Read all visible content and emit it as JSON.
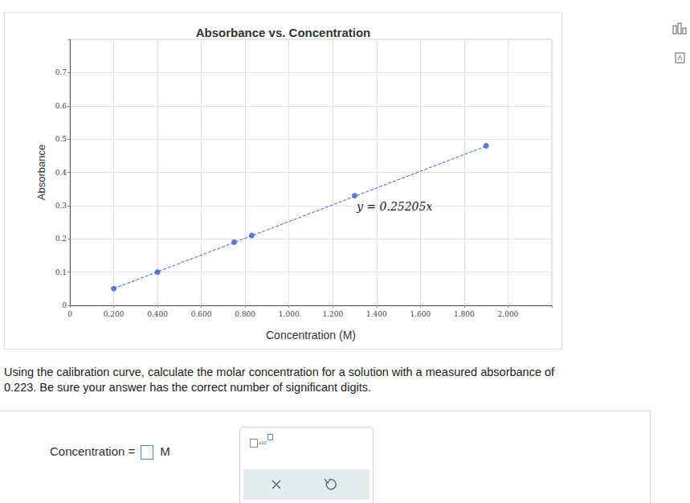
{
  "chart_data": {
    "type": "scatter",
    "title": "Absorbance vs. Concentration",
    "x_label": "Concentration (M)",
    "y_label": "Absorbance",
    "x": [
      0.2,
      0.4,
      0.75,
      0.83,
      1.3,
      1.9
    ],
    "values": [
      0.05,
      0.1,
      0.19,
      0.21,
      0.33,
      0.48
    ],
    "color": "#3a5fcd",
    "marker": "circle",
    "xlim": [
      0,
      2.2
    ],
    "ylim": [
      0,
      0.8
    ],
    "xticks": [
      0,
      {
        "value": 0.2,
        "label": "0.200"
      },
      {
        "value": 0.4,
        "label": "0.400"
      },
      {
        "value": 0.6,
        "label": "0.600"
      },
      {
        "value": 0.8,
        "label": "0.800"
      },
      {
        "value": 1.0,
        "label": "1.000"
      },
      {
        "value": 1.2,
        "label": "1.200"
      },
      {
        "value": 1.4,
        "label": "1.400"
      },
      {
        "value": 1.6,
        "label": "1.600"
      },
      {
        "value": 1.8,
        "label": "1.800"
      },
      {
        "value": 2.0,
        "label": "2.000"
      }
    ],
    "yticks": [
      0,
      0.1,
      0.2,
      0.3,
      0.4,
      0.5,
      0.6,
      0.7
    ],
    "grid": true,
    "fit": {
      "slope": 0.25205,
      "label": "y = 0.25205x",
      "line_style": "dashed"
    }
  },
  "question": [
    "Using the calibration curve, calculate the molar concentration for a solution with a measured absorbance of",
    "0.223. Be sure your answer has the correct number of significant digits."
  ],
  "answer": {
    "label": "Concentration =",
    "unit": "M",
    "exponent_label": "x10"
  }
}
